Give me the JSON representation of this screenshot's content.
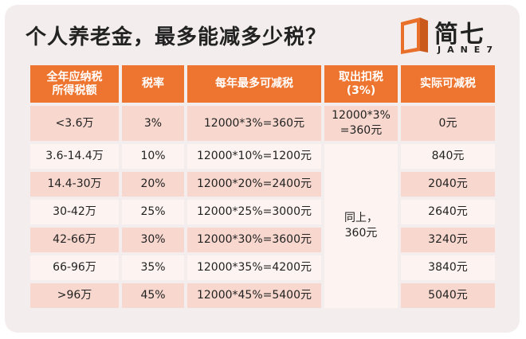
{
  "title": "个人养老金，最多能减多少税？",
  "logo": {
    "name_cn": "简七",
    "name_en": "JANE7",
    "accent": "#e8702a"
  },
  "colors": {
    "header": "#ee7530",
    "row_dark": "#f8d8ce",
    "row_light": "#fdf4f1",
    "background": "#f3eeed"
  },
  "table": {
    "headers": {
      "income_line1": "全年应纳税",
      "income_line2": "所得税额",
      "rate": "税率",
      "max": "每年最多可减税",
      "withdraw_line1": "取出扣税",
      "withdraw_line2": "(3%)",
      "actual": "实际可减税"
    },
    "rows": [
      {
        "income": "<3.6万",
        "rate": "3%",
        "max": "12000*3%=360元",
        "actual": "0元"
      },
      {
        "income": "3.6-14.4万",
        "rate": "10%",
        "max": "12000*10%=1200元",
        "actual": "840元"
      },
      {
        "income": "14.4-30万",
        "rate": "20%",
        "max": "12000*20%=2400元",
        "actual": "2040元"
      },
      {
        "income": "30-42万",
        "rate": "25%",
        "max": "12000*25%=3000元",
        "actual": "2640元"
      },
      {
        "income": "42-66万",
        "rate": "30%",
        "max": "12000*30%=3600元",
        "actual": "3240元"
      },
      {
        "income": "66-96万",
        "rate": "35%",
        "max": "12000*35%=4200元",
        "actual": "3840元"
      },
      {
        "income": ">96万",
        "rate": "45%",
        "max": "12000*45%=5400元",
        "actual": "5040元"
      }
    ],
    "withdraw_first_line1": "12000*3%",
    "withdraw_first_line2": "=360元",
    "withdraw_rest_line1": "同上，",
    "withdraw_rest_line2": "360元"
  }
}
